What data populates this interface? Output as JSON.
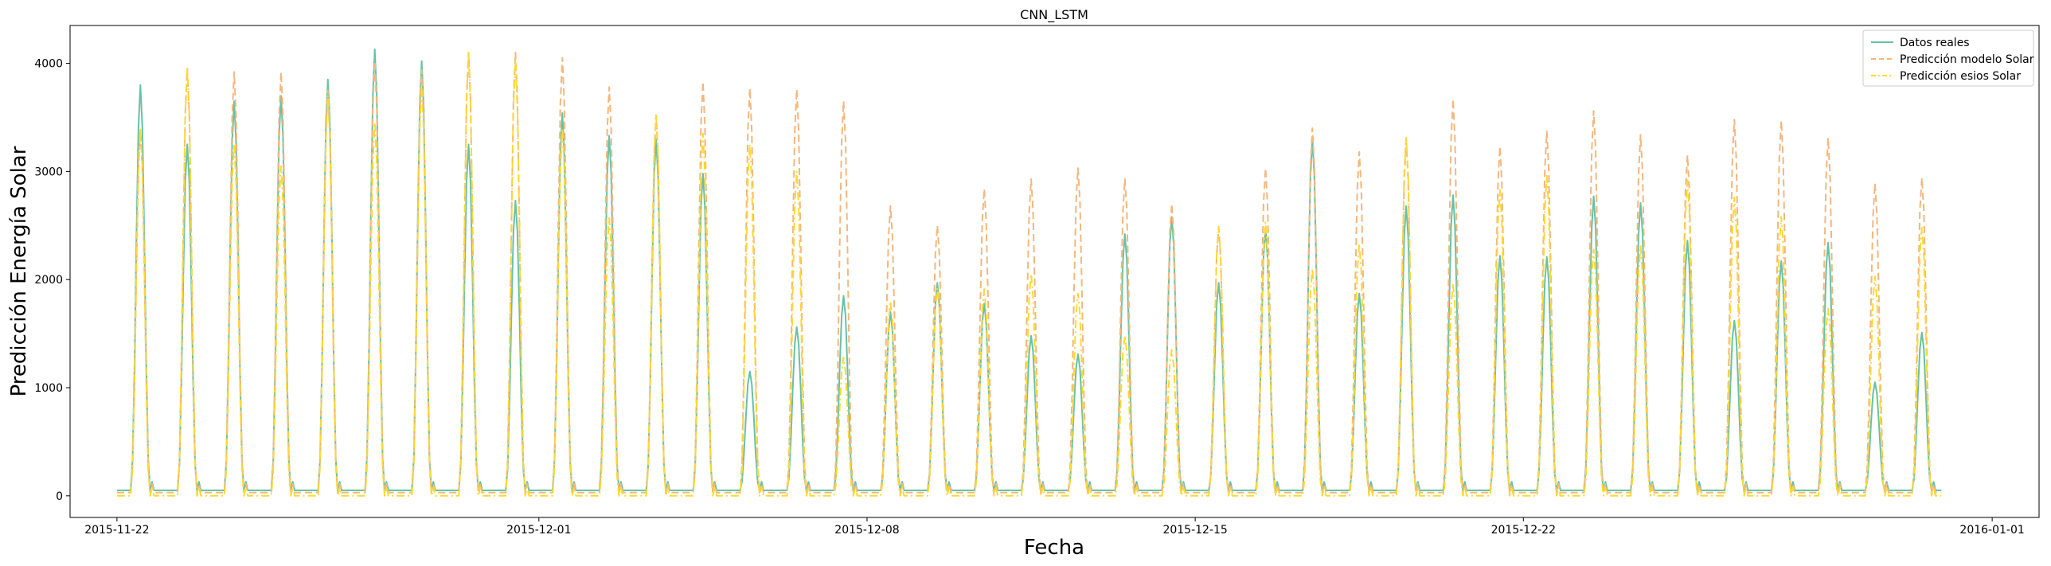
{
  "chart_data": {
    "type": "line",
    "title": "CNN_LSTM",
    "xlabel": "Fecha",
    "ylabel": "Predicción Energía Solar",
    "x_start": "2015-11-22",
    "x_end": "2015-12-30",
    "xlim": [
      "2015-11-21",
      "2016-01-02"
    ],
    "ylim": [
      -200,
      4350
    ],
    "x_ticks": [
      "2015-11-22",
      "2015-12-01",
      "2015-12-08",
      "2015-12-15",
      "2015-12-22",
      "2016-01-01"
    ],
    "y_ticks": [
      0,
      1000,
      2000,
      3000,
      4000
    ],
    "grid": false,
    "legend_position": "top-right",
    "colors": {
      "Datos reales": "#66c2a5",
      "Predicción modelo Solar": "#f4b77d",
      "Predicción esios Solar": "#ffd92f"
    },
    "series": [
      {
        "name": "Datos reales",
        "style": "solid",
        "daily_peaks": [
          3800,
          3250,
          3650,
          3700,
          3850,
          4130,
          4020,
          3250,
          2730,
          3540,
          3330,
          3300,
          2980,
          1150,
          1560,
          1850,
          1700,
          1970,
          1780,
          1480,
          1310,
          2420,
          2580,
          1970,
          2470,
          3300,
          1870,
          2680,
          2780,
          2220,
          2210,
          2770,
          2710,
          2360,
          1620,
          2170,
          2340,
          1050,
          1510
        ],
        "night_base": 50
      },
      {
        "name": "Predicción modelo Solar",
        "style": "dashed",
        "daily_peaks": [
          3380,
          3950,
          3920,
          3920,
          3750,
          4020,
          3940,
          4100,
          4100,
          4050,
          3780,
          3520,
          3830,
          3770,
          3760,
          3650,
          2680,
          2500,
          2840,
          2930,
          3030,
          2930,
          2700,
          2480,
          3030,
          3400,
          3180,
          3280,
          3670,
          3230,
          3370,
          3560,
          3340,
          3150,
          3480,
          3470,
          3310,
          2890,
          2940
        ],
        "night_base": 30
      },
      {
        "name": "Predicción esios Solar",
        "style": "dashdot",
        "daily_peaks": [
          3400,
          3950,
          3250,
          3050,
          3700,
          3450,
          3800,
          4100,
          4030,
          3400,
          2570,
          3520,
          3350,
          3250,
          3000,
          1280,
          1800,
          1920,
          1910,
          2050,
          1870,
          1480,
          1350,
          2490,
          2530,
          2100,
          2330,
          3320,
          1960,
          2830,
          2960,
          2280,
          2310,
          2920,
          2760,
          2580,
          1730,
          2030,
          2480
        ],
        "night_base": 0
      }
    ]
  }
}
